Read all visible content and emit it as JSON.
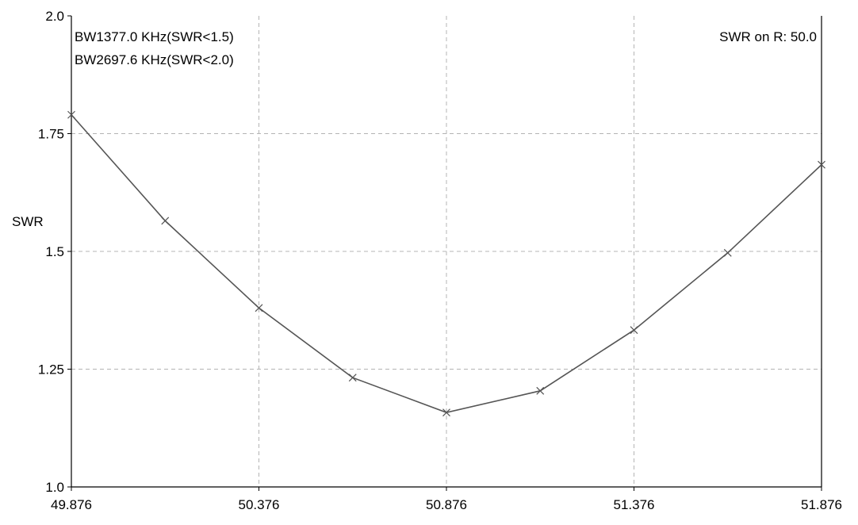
{
  "chart_data": {
    "type": "line",
    "title": "",
    "xlabel": "",
    "ylabel": "SWR",
    "xlim": [
      49.876,
      51.876
    ],
    "ylim": [
      1.0,
      2.0
    ],
    "x_ticks": [
      49.876,
      50.376,
      50.876,
      51.376,
      51.876
    ],
    "x_tick_labels": [
      "49.876",
      "50.376",
      "50.876",
      "51.376",
      "51.876"
    ],
    "y_ticks": [
      1.0,
      1.25,
      1.5,
      1.75,
      2.0
    ],
    "y_tick_labels": [
      "1.0",
      "1.25",
      "1.5",
      "1.75",
      "2.0"
    ],
    "grid": true,
    "grid_style": "dashed",
    "series": [
      {
        "x": [
          49.876,
          50.126,
          50.376,
          50.626,
          50.876,
          51.126,
          51.376,
          51.626,
          51.876
        ],
        "y": [
          1.79,
          1.565,
          1.38,
          1.232,
          1.158,
          1.204,
          1.333,
          1.497,
          1.684
        ],
        "marker": "x",
        "color": "#555555"
      }
    ],
    "annotations": {
      "bw1": "BW1377.0 KHz(SWR<1.5)",
      "bw2": "BW2697.6 KHz(SWR<2.0)",
      "swr_ref": "SWR on R: 50.0"
    }
  }
}
